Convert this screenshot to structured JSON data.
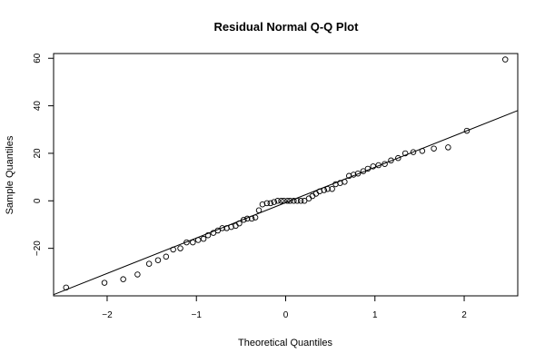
{
  "chart_data": {
    "type": "scatter",
    "title": "Residual Normal Q-Q Plot",
    "xlabel": "Theoretical Quantiles",
    "ylabel": "Sample Quantiles",
    "xlim": [
      -2.6,
      2.6
    ],
    "ylim": [
      -40,
      62
    ],
    "x_ticks": [
      -2,
      -1,
      0,
      1,
      2
    ],
    "y_ticks": [
      -20,
      0,
      20,
      40,
      60
    ],
    "x_tick_labels": [
      "−2",
      "−1",
      "0",
      "1",
      "2"
    ],
    "y_tick_labels": [
      "−20",
      "0",
      "20",
      "40",
      "60"
    ],
    "grid": false,
    "legend": "none",
    "reference_line": {
      "x": [
        -2.6,
        2.6
      ],
      "y": [
        -39.5,
        38.0
      ]
    },
    "points": [
      {
        "x": -2.46,
        "y": -36.5
      },
      {
        "x": -2.03,
        "y": -34.5
      },
      {
        "x": -1.82,
        "y": -33.0
      },
      {
        "x": -1.66,
        "y": -31.0
      },
      {
        "x": -1.53,
        "y": -26.5
      },
      {
        "x": -1.43,
        "y": -25.0
      },
      {
        "x": -1.34,
        "y": -23.5
      },
      {
        "x": -1.26,
        "y": -20.5
      },
      {
        "x": -1.18,
        "y": -20.0
      },
      {
        "x": -1.11,
        "y": -17.5
      },
      {
        "x": -1.04,
        "y": -17.5
      },
      {
        "x": -0.98,
        "y": -16.5
      },
      {
        "x": -0.92,
        "y": -16.0
      },
      {
        "x": -0.87,
        "y": -14.5
      },
      {
        "x": -0.81,
        "y": -13.5
      },
      {
        "x": -0.76,
        "y": -12.5
      },
      {
        "x": -0.71,
        "y": -11.5
      },
      {
        "x": -0.66,
        "y": -11.5
      },
      {
        "x": -0.61,
        "y": -11.0
      },
      {
        "x": -0.56,
        "y": -10.5
      },
      {
        "x": -0.52,
        "y": -9.5
      },
      {
        "x": -0.47,
        "y": -8.0
      },
      {
        "x": -0.43,
        "y": -7.5
      },
      {
        "x": -0.38,
        "y": -7.5
      },
      {
        "x": -0.34,
        "y": -7.0
      },
      {
        "x": -0.3,
        "y": -4.0
      },
      {
        "x": -0.26,
        "y": -1.5
      },
      {
        "x": -0.21,
        "y": -1.0
      },
      {
        "x": -0.17,
        "y": -1.0
      },
      {
        "x": -0.13,
        "y": -0.5
      },
      {
        "x": -0.09,
        "y": 0.0
      },
      {
        "x": -0.05,
        "y": 0.0
      },
      {
        "x": -0.02,
        "y": 0.0
      },
      {
        "x": 0.02,
        "y": 0.0
      },
      {
        "x": 0.05,
        "y": 0.0
      },
      {
        "x": 0.09,
        "y": 0.0
      },
      {
        "x": 0.13,
        "y": 0.0
      },
      {
        "x": 0.17,
        "y": 0.0
      },
      {
        "x": 0.21,
        "y": 0.0
      },
      {
        "x": 0.26,
        "y": 1.0
      },
      {
        "x": 0.3,
        "y": 2.0
      },
      {
        "x": 0.34,
        "y": 3.0
      },
      {
        "x": 0.38,
        "y": 4.0
      },
      {
        "x": 0.43,
        "y": 4.5
      },
      {
        "x": 0.47,
        "y": 5.0
      },
      {
        "x": 0.52,
        "y": 5.0
      },
      {
        "x": 0.56,
        "y": 7.0
      },
      {
        "x": 0.61,
        "y": 7.5
      },
      {
        "x": 0.66,
        "y": 8.0
      },
      {
        "x": 0.71,
        "y": 10.5
      },
      {
        "x": 0.76,
        "y": 11.0
      },
      {
        "x": 0.81,
        "y": 11.5
      },
      {
        "x": 0.87,
        "y": 12.5
      },
      {
        "x": 0.92,
        "y": 13.5
      },
      {
        "x": 0.98,
        "y": 14.5
      },
      {
        "x": 1.04,
        "y": 15.0
      },
      {
        "x": 1.11,
        "y": 15.5
      },
      {
        "x": 1.18,
        "y": 17.0
      },
      {
        "x": 1.26,
        "y": 18.0
      },
      {
        "x": 1.34,
        "y": 20.0
      },
      {
        "x": 1.43,
        "y": 20.5
      },
      {
        "x": 1.53,
        "y": 21.0
      },
      {
        "x": 1.66,
        "y": 22.0
      },
      {
        "x": 1.82,
        "y": 22.5
      },
      {
        "x": 2.03,
        "y": 29.5
      },
      {
        "x": 2.46,
        "y": 59.5
      }
    ]
  }
}
